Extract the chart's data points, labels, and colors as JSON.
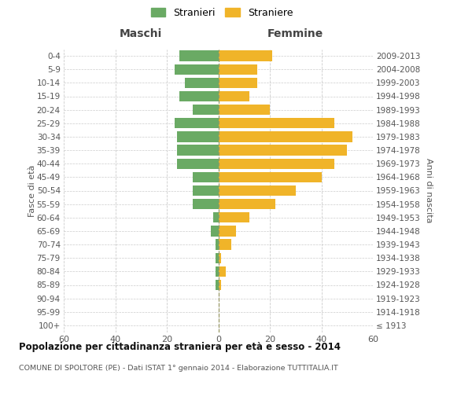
{
  "age_groups": [
    "100+",
    "95-99",
    "90-94",
    "85-89",
    "80-84",
    "75-79",
    "70-74",
    "65-69",
    "60-64",
    "55-59",
    "50-54",
    "45-49",
    "40-44",
    "35-39",
    "30-34",
    "25-29",
    "20-24",
    "15-19",
    "10-14",
    "5-9",
    "0-4"
  ],
  "birth_years": [
    "≤ 1913",
    "1914-1918",
    "1919-1923",
    "1924-1928",
    "1929-1933",
    "1934-1938",
    "1939-1943",
    "1944-1948",
    "1949-1953",
    "1954-1958",
    "1959-1963",
    "1964-1968",
    "1969-1973",
    "1974-1978",
    "1979-1983",
    "1984-1988",
    "1989-1993",
    "1994-1998",
    "1999-2003",
    "2004-2008",
    "2009-2013"
  ],
  "maschi": [
    0,
    0,
    0,
    1,
    1,
    1,
    1,
    3,
    2,
    10,
    10,
    10,
    16,
    16,
    16,
    17,
    10,
    15,
    13,
    17,
    15
  ],
  "femmine": [
    0,
    0,
    0,
    1,
    3,
    1,
    5,
    7,
    12,
    22,
    30,
    40,
    45,
    50,
    52,
    45,
    20,
    12,
    15,
    15,
    21
  ],
  "maschi_color": "#6aaa64",
  "femmine_color": "#f0b429",
  "background_color": "#ffffff",
  "grid_color": "#cccccc",
  "title_main": "Popolazione per cittadinanza straniera per età e sesso - 2014",
  "title_sub": "COMUNE DI SPOLTORE (PE) - Dati ISTAT 1° gennaio 2014 - Elaborazione TUTTITALIA.IT",
  "header_left": "Maschi",
  "header_right": "Femmine",
  "ylabel_left": "Fasce di età",
  "ylabel_right": "Anni di nascita",
  "legend_maschi": "Stranieri",
  "legend_femmine": "Straniere",
  "xlim": 60
}
